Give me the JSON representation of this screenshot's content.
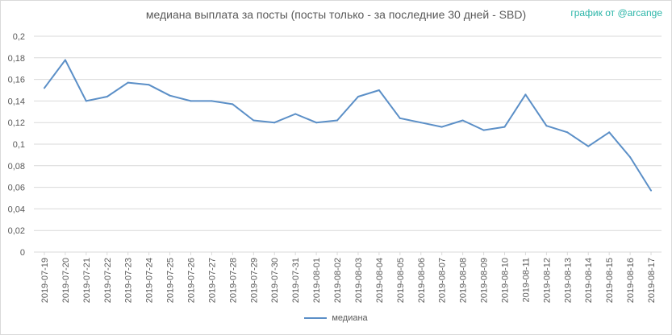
{
  "chart_data": {
    "type": "line",
    "title": "медиана выплата за посты  (посты только - за последние 30 дней - SBD)",
    "credit": "график от @arcange",
    "x": [
      "2019-07-19",
      "2019-07-20",
      "2019-07-21",
      "2019-07-22",
      "2019-07-23",
      "2019-07-24",
      "2019-07-25",
      "2019-07-26",
      "2019-07-27",
      "2019-07-28",
      "2019-07-29",
      "2019-07-30",
      "2019-07-31",
      "2019-08-01",
      "2019-08-02",
      "2019-08-03",
      "2019-08-04",
      "2019-08-05",
      "2019-08-06",
      "2019-08-07",
      "2019-08-08",
      "2019-08-09",
      "2019-08-10",
      "2019-08-11",
      "2019-08-12",
      "2019-08-13",
      "2019-08-14",
      "2019-08-15",
      "2019-08-16",
      "2019-08-17"
    ],
    "series": [
      {
        "name": "медиана",
        "values": [
          0.152,
          0.178,
          0.14,
          0.144,
          0.157,
          0.155,
          0.145,
          0.14,
          0.14,
          0.137,
          0.122,
          0.12,
          0.128,
          0.12,
          0.122,
          0.144,
          0.15,
          0.124,
          0.12,
          0.116,
          0.122,
          0.113,
          0.116,
          0.146,
          0.117,
          0.111,
          0.098,
          0.111,
          0.088,
          0.057
        ]
      }
    ],
    "ylim": [
      0,
      0.2
    ],
    "yticks": [
      "0",
      "0,02",
      "0,04",
      "0,06",
      "0,08",
      "0,1",
      "0,12",
      "0,14",
      "0,16",
      "0,18",
      "0,2"
    ],
    "grid": true,
    "legend_position": "bottom",
    "colors": {
      "line": "#5b8fc7",
      "grid": "#d9d9d9",
      "credit": "#2bb5a8"
    }
  }
}
